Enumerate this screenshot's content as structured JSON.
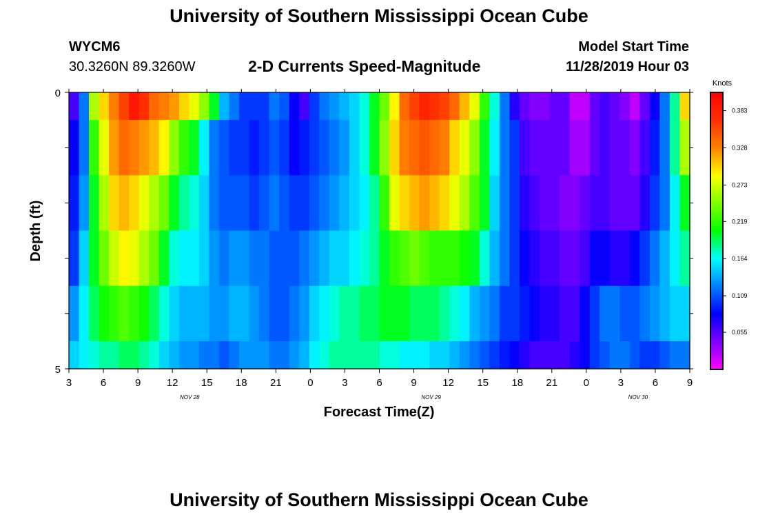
{
  "header": {
    "title": "University of Southern Mississippi Ocean Cube",
    "station_id": "WYCM6",
    "station_coords": "30.3260N 89.3260W",
    "subtitle": "2-D Currents Speed-Magnitude",
    "model_start_label": "Model Start Time",
    "model_start_value": "11/28/2019 Hour 03"
  },
  "footer": {
    "title": "University of Southern Mississippi Ocean Cube"
  },
  "chart_data": {
    "type": "heatmap",
    "title": "2-D Currents Speed-Magnitude",
    "xlabel": "Forecast Time(Z)",
    "ylabel": "Depth (ft)",
    "x_tick_labels": [
      "3",
      "6",
      "9",
      "12",
      "15",
      "18",
      "21",
      "0",
      "3",
      "6",
      "9",
      "12",
      "15",
      "18",
      "21",
      "0",
      "3",
      "6",
      "9"
    ],
    "date_labels": [
      "NOV 28",
      "NOV 29",
      "NOV 30"
    ],
    "y_tick_labels": [
      "0",
      "5"
    ],
    "ylim": [
      0,
      5
    ],
    "colorbar": {
      "unit_label": "Knots",
      "tick_labels": [
        "0.383",
        "0.328",
        "0.273",
        "0.219",
        "0.164",
        "0.109",
        "0.055"
      ],
      "range": [
        0.0,
        0.41
      ],
      "colors": [
        "#ff00ff",
        "#8000ff",
        "#0000ff",
        "#0080ff",
        "#00ffff",
        "#00ff00",
        "#80ff00",
        "#ffff00",
        "#ff8000",
        "#ff3000",
        "#ff0000"
      ]
    },
    "depth_rows": [
      "0-0.5 ft",
      "0.5-1.5 ft",
      "1.5-2.5 ft",
      "2.5-3.5 ft",
      "3.5-4.5 ft",
      "4.5-5 ft"
    ],
    "values": [
      [
        0.06,
        0.12,
        0.26,
        0.3,
        0.33,
        0.36,
        0.39,
        0.37,
        0.34,
        0.33,
        0.32,
        0.3,
        0.28,
        0.25,
        0.2,
        0.14,
        0.12,
        0.1,
        0.1,
        0.1,
        0.12,
        0.11,
        0.08,
        0.06,
        0.1,
        0.12,
        0.13,
        0.14,
        0.15,
        0.17,
        0.2,
        0.24,
        0.29,
        0.34,
        0.36,
        0.38,
        0.37,
        0.36,
        0.34,
        0.31,
        0.28,
        0.22,
        0.17,
        0.12,
        0.07,
        0.05,
        0.04,
        0.04,
        0.05,
        0.05,
        0.02,
        0.02,
        0.05,
        0.06,
        0.05,
        0.04,
        0.02,
        0.05,
        0.08,
        0.12,
        0.18,
        0.3
      ],
      [
        0.08,
        0.12,
        0.22,
        0.28,
        0.32,
        0.34,
        0.33,
        0.32,
        0.31,
        0.29,
        0.25,
        0.22,
        0.2,
        0.16,
        0.12,
        0.11,
        0.1,
        0.1,
        0.09,
        0.1,
        0.11,
        0.1,
        0.08,
        0.09,
        0.1,
        0.11,
        0.12,
        0.13,
        0.15,
        0.17,
        0.2,
        0.25,
        0.3,
        0.33,
        0.34,
        0.35,
        0.34,
        0.33,
        0.3,
        0.28,
        0.25,
        0.2,
        0.16,
        0.12,
        0.1,
        0.06,
        0.05,
        0.05,
        0.05,
        0.05,
        0.03,
        0.03,
        0.05,
        0.06,
        0.05,
        0.05,
        0.04,
        0.06,
        0.09,
        0.12,
        0.18,
        0.26
      ],
      [
        0.09,
        0.13,
        0.2,
        0.26,
        0.3,
        0.31,
        0.3,
        0.28,
        0.26,
        0.24,
        0.2,
        0.18,
        0.17,
        0.15,
        0.12,
        0.11,
        0.11,
        0.11,
        0.1,
        0.11,
        0.12,
        0.11,
        0.1,
        0.1,
        0.11,
        0.12,
        0.13,
        0.14,
        0.15,
        0.16,
        0.18,
        0.22,
        0.28,
        0.3,
        0.31,
        0.32,
        0.31,
        0.3,
        0.28,
        0.26,
        0.23,
        0.2,
        0.15,
        0.12,
        0.1,
        0.07,
        0.06,
        0.05,
        0.05,
        0.04,
        0.04,
        0.05,
        0.06,
        0.06,
        0.05,
        0.05,
        0.05,
        0.07,
        0.1,
        0.12,
        0.16,
        0.2
      ],
      [
        0.1,
        0.15,
        0.2,
        0.24,
        0.27,
        0.29,
        0.28,
        0.26,
        0.24,
        0.2,
        0.17,
        0.16,
        0.16,
        0.15,
        0.13,
        0.12,
        0.13,
        0.13,
        0.12,
        0.12,
        0.11,
        0.11,
        0.11,
        0.12,
        0.13,
        0.14,
        0.15,
        0.15,
        0.16,
        0.17,
        0.18,
        0.2,
        0.22,
        0.23,
        0.24,
        0.23,
        0.22,
        0.22,
        0.22,
        0.21,
        0.2,
        0.17,
        0.14,
        0.12,
        0.1,
        0.08,
        0.07,
        0.06,
        0.06,
        0.05,
        0.05,
        0.06,
        0.08,
        0.08,
        0.07,
        0.07,
        0.08,
        0.1,
        0.12,
        0.14,
        0.16,
        0.18
      ],
      [
        0.13,
        0.16,
        0.19,
        0.21,
        0.22,
        0.23,
        0.22,
        0.21,
        0.19,
        0.17,
        0.15,
        0.14,
        0.14,
        0.14,
        0.13,
        0.13,
        0.14,
        0.14,
        0.13,
        0.12,
        0.11,
        0.11,
        0.12,
        0.13,
        0.15,
        0.16,
        0.17,
        0.18,
        0.18,
        0.19,
        0.19,
        0.2,
        0.2,
        0.2,
        0.19,
        0.19,
        0.19,
        0.18,
        0.17,
        0.16,
        0.14,
        0.13,
        0.12,
        0.1,
        0.1,
        0.09,
        0.08,
        0.07,
        0.07,
        0.06,
        0.06,
        0.08,
        0.1,
        0.12,
        0.12,
        0.11,
        0.11,
        0.12,
        0.13,
        0.14,
        0.15,
        0.15
      ],
      [
        0.15,
        0.16,
        0.17,
        0.18,
        0.18,
        0.19,
        0.19,
        0.18,
        0.17,
        0.15,
        0.14,
        0.13,
        0.13,
        0.12,
        0.12,
        0.11,
        0.12,
        0.13,
        0.13,
        0.13,
        0.12,
        0.12,
        0.13,
        0.14,
        0.16,
        0.17,
        0.18,
        0.18,
        0.18,
        0.18,
        0.18,
        0.17,
        0.17,
        0.16,
        0.16,
        0.16,
        0.15,
        0.15,
        0.14,
        0.13,
        0.12,
        0.11,
        0.1,
        0.09,
        0.08,
        0.07,
        0.06,
        0.06,
        0.06,
        0.06,
        0.07,
        0.08,
        0.1,
        0.11,
        0.12,
        0.12,
        0.11,
        0.1,
        0.1,
        0.11,
        0.12,
        0.12
      ]
    ]
  }
}
